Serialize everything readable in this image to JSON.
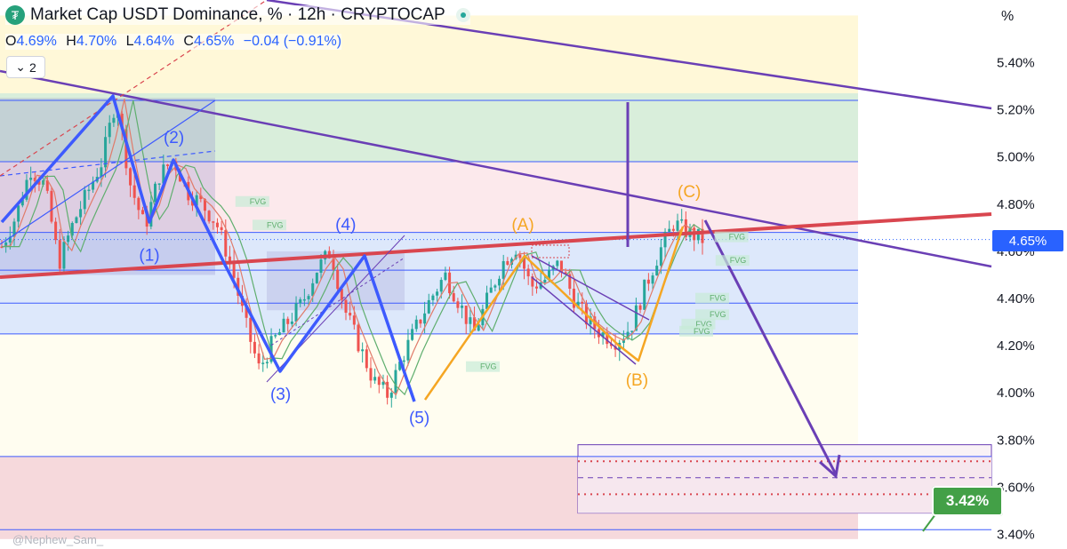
{
  "header": {
    "title": "Market Cap USDT Dominance, % · 12h · CRYPTOCAP",
    "logo_icon": "tether-logo-icon",
    "status_icon": "market-status-dot-icon"
  },
  "ohlc": {
    "o_label": "O",
    "o": "4.69%",
    "h_label": "H",
    "h": "4.70%",
    "l_label": "L",
    "l": "4.64%",
    "c_label": "C",
    "c": "4.65%",
    "change": "−0.04 (−0.91%)"
  },
  "indicators_button": {
    "icon": "chevron-down-icon",
    "count": "2"
  },
  "watermark": "@Nephew_Sam_",
  "price_axis": {
    "unit": "%",
    "current_price_badge": "4.65%",
    "target_badge": "3.42%"
  },
  "colors": {
    "up": "#26a69a",
    "down": "#ef5350",
    "wave_blue": "#3d5afe",
    "wave_orange": "#f5a623",
    "purple": "#6a3fb5",
    "trend_red": "#d9464f",
    "badge_blue": "#2962ff",
    "badge_green": "#43a047"
  },
  "chart_data": {
    "type": "candlestick",
    "y_unit": "%",
    "ylim": [
      3.38,
      5.58
    ],
    "y_ticks": [
      5.4,
      5.2,
      5.0,
      4.8,
      4.6,
      4.4,
      4.2,
      4.0,
      3.8,
      3.6,
      3.4
    ],
    "y_tick_labels": [
      "5.40%",
      "5.20%",
      "5.00%",
      "4.80%",
      "4.60%",
      "4.40%",
      "4.20%",
      "4.00%",
      "3.80%",
      "3.60%",
      "3.40%"
    ],
    "current_price": 4.65,
    "target_price": 3.42,
    "close_path": [
      4.62,
      4.75,
      4.95,
      4.88,
      4.55,
      4.72,
      4.85,
      4.98,
      5.25,
      4.88,
      4.7,
      4.92,
      4.99,
      4.85,
      4.8,
      4.72,
      4.55,
      4.3,
      4.1,
      4.22,
      4.3,
      4.38,
      4.52,
      4.6,
      4.35,
      4.2,
      4.05,
      3.99,
      4.15,
      4.28,
      4.4,
      4.5,
      4.38,
      4.25,
      4.4,
      4.55,
      4.62,
      4.45,
      4.48,
      4.55,
      4.4,
      4.3,
      4.25,
      4.22,
      4.28,
      4.45,
      4.6,
      4.72,
      4.68,
      4.65
    ],
    "zones": [
      {
        "top": 5.6,
        "bottom": 5.27,
        "color": "#fff8d8"
      },
      {
        "top": 5.27,
        "bottom": 4.98,
        "color": "#d9eedb"
      },
      {
        "top": 4.98,
        "bottom": 4.68,
        "color": "#fce9ec"
      },
      {
        "top": 4.68,
        "bottom": 4.25,
        "color": "#dde8fb"
      },
      {
        "top": 4.25,
        "bottom": 3.73,
        "color": "#fffdf0"
      },
      {
        "top": 3.73,
        "bottom": 3.38,
        "color": "#f6d9dc"
      }
    ],
    "wave_labels": [
      {
        "text": "(1)",
        "x": 0.14,
        "y": 4.56,
        "color": "blue"
      },
      {
        "text": "(2)",
        "x": 0.163,
        "y": 5.06,
        "color": "blue"
      },
      {
        "text": "(3)",
        "x": 0.263,
        "y": 3.97,
        "color": "blue"
      },
      {
        "text": "(4)",
        "x": 0.324,
        "y": 4.69,
        "color": "blue"
      },
      {
        "text": "(5)",
        "x": 0.393,
        "y": 3.87,
        "color": "blue"
      },
      {
        "text": "(A)",
        "x": 0.49,
        "y": 4.69,
        "color": "orange"
      },
      {
        "text": "(B)",
        "x": 0.597,
        "y": 4.03,
        "color": "orange"
      },
      {
        "text": "(C)",
        "x": 0.646,
        "y": 4.83,
        "color": "orange"
      }
    ],
    "fvg_labels": [
      {
        "text": "FVG",
        "x": 0.234,
        "y": 4.8
      },
      {
        "text": "FVG",
        "x": 0.25,
        "y": 4.7
      },
      {
        "text": "FVG",
        "x": 0.45,
        "y": 4.1
      },
      {
        "text": "FVG",
        "x": 0.683,
        "y": 4.65
      },
      {
        "text": "FVG",
        "x": 0.684,
        "y": 4.55
      },
      {
        "text": "FVG",
        "x": 0.665,
        "y": 4.39
      },
      {
        "text": "FVG",
        "x": 0.665,
        "y": 4.32
      },
      {
        "text": "FVG",
        "x": 0.652,
        "y": 4.28
      },
      {
        "text": "FVG",
        "x": 0.65,
        "y": 4.25
      }
    ]
  }
}
